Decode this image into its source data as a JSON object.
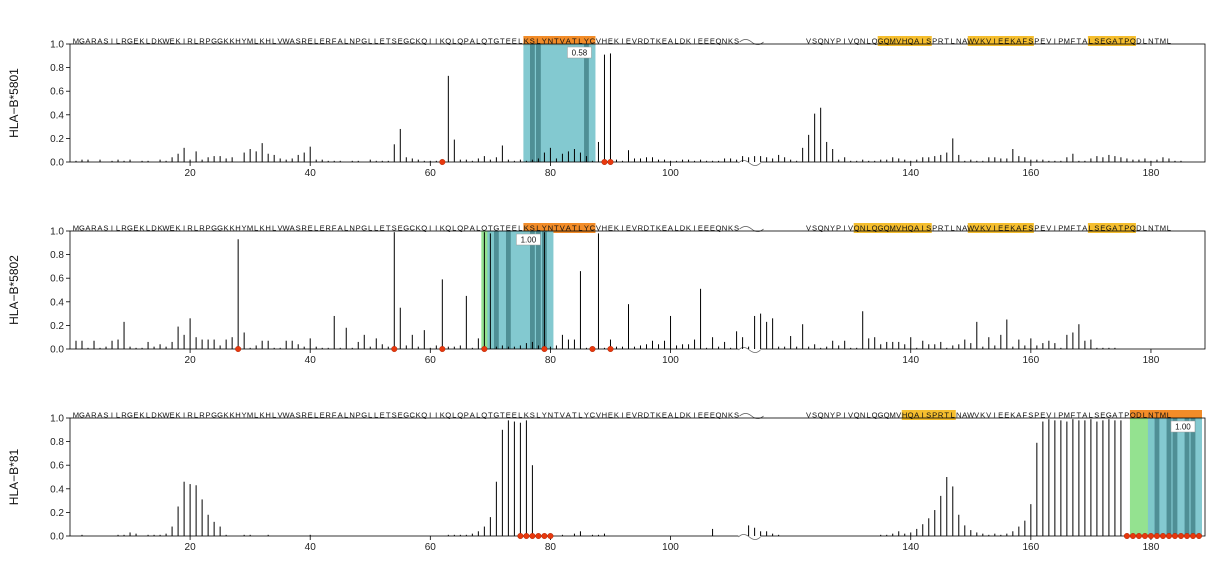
{
  "chart_data": {
    "type": "bar",
    "description": "Epitope prediction stick plots for three HLA alleles along an antigen sequence (two segments separated by a break)",
    "segment1_sequence": "MGARASILRGEKLDKWEKIRLRPGGKKHYMLKHLVWASRELERFALNPGLLETSEGCKQIIKQLQPALQTGTEELKSLYNTVATLYCVHEKIEVRDTKEALDKIEEEQNKS",
    "segment2_sequence": "VSQNYPIVQNLQGQMVHQAISPRTLNAWVKVIEEKAFSPEVIPMFTALSEGATPQDLNTML",
    "break_at": 111,
    "xlim": [
      0,
      189
    ],
    "ylim": [
      0,
      1.0
    ],
    "xticks": [
      20,
      40,
      60,
      80,
      100,
      140,
      160,
      180
    ],
    "yticks": [
      0.0,
      0.2,
      0.4,
      0.6,
      0.8,
      1.0
    ],
    "colors": {
      "orange": "#F28C28",
      "yellow": "#F5BE2E",
      "teal": "#7CC6CE",
      "teal_dark": "#4F8F95",
      "green": "#8EE08A",
      "dot": "#E8380D",
      "stick": "#000000",
      "axis": "#000000"
    },
    "panels": [
      {
        "allele": "HLA−B*5801",
        "score_label": "0.58",
        "highlights": [
          {
            "start": 76,
            "end": 87,
            "color": "orange"
          },
          {
            "start": 135,
            "end": 143,
            "color": "yellow"
          },
          {
            "start": 150,
            "end": 160,
            "color": "yellow"
          },
          {
            "start": 170,
            "end": 177,
            "color": "yellow"
          }
        ],
        "boxes": [
          {
            "start": 76,
            "end": 87,
            "color": "teal"
          }
        ],
        "box_dark": [
          77,
          78,
          86
        ],
        "dots": [
          62,
          89,
          90
        ],
        "values": [
          0.01,
          0.02,
          0.02,
          0,
          0.02,
          0,
          0.01,
          0.02,
          0.01,
          0.02,
          0,
          0.01,
          0.01,
          0,
          0.02,
          0.01,
          0.04,
          0.07,
          0.12,
          0.02,
          0.09,
          0.02,
          0.04,
          0.05,
          0.05,
          0.03,
          0.04,
          0,
          0.08,
          0.11,
          0.09,
          0.16,
          0.07,
          0.06,
          0.03,
          0.02,
          0.03,
          0.06,
          0.08,
          0.13,
          0.02,
          0.02,
          0.01,
          0.01,
          0.01,
          0,
          0.01,
          0.01,
          0,
          0.02,
          0.01,
          0.01,
          0.01,
          0.15,
          0.28,
          0.04,
          0.03,
          0.02,
          0.01,
          0.01,
          0.01,
          0.01,
          0.73,
          0.19,
          0.02,
          0.02,
          0.01,
          0.03,
          0.05,
          0.02,
          0.04,
          0.14,
          0.02,
          0.01,
          0.02,
          0.01,
          0.02,
          0.03,
          0.08,
          0.12,
          0.03,
          0.07,
          0.09,
          0.11,
          0.08,
          0.05,
          0.01,
          0.17,
          0.91,
          0.92,
          0.02,
          0.01,
          0.1,
          0.03,
          0.03,
          0.04,
          0.04,
          0.02,
          0.02,
          0.01,
          0.01,
          0.02,
          0.02,
          0.01,
          0.02,
          0.01,
          0.01,
          0.01,
          0.03,
          0.03,
          0.02,
          0.05,
          0.04,
          0.05,
          0.05,
          0.04,
          0.03,
          0.06,
          0.04,
          0.02,
          0.01,
          0.12,
          0.23,
          0.41,
          0.46,
          0.17,
          0.11,
          0.02,
          0.04,
          0.01,
          0.01,
          0.02,
          0.01,
          0.01,
          0.02,
          0.02,
          0.04,
          0.03,
          0.02,
          0.01,
          0.02,
          0.04,
          0.04,
          0.05,
          0.06,
          0.08,
          0.2,
          0.06,
          0.01,
          0.02,
          0.01,
          0.01,
          0.04,
          0.04,
          0.03,
          0.03,
          0.11,
          0.05,
          0.04,
          0.02,
          0.02,
          0.02,
          0.01,
          0.01,
          0.01,
          0.04,
          0.07,
          0.01,
          0.01,
          0.03,
          0.05,
          0.04,
          0.06,
          0.05,
          0.04,
          0.03,
          0.02,
          0.02,
          0.03,
          0.01,
          0.02,
          0.04,
          0.03,
          0.01,
          0.01
        ]
      },
      {
        "allele": "HLA−B*5802",
        "score_label": "1.00",
        "highlights": [
          {
            "start": 76,
            "end": 87,
            "color": "orange"
          },
          {
            "start": 131,
            "end": 143,
            "color": "yellow"
          },
          {
            "start": 150,
            "end": 160,
            "color": "yellow"
          },
          {
            "start": 170,
            "end": 177,
            "color": "yellow"
          }
        ],
        "boxes": [
          {
            "start": 69,
            "end": 70,
            "color": "green"
          },
          {
            "start": 70,
            "end": 80,
            "color": "teal"
          }
        ],
        "box_dark": [
          71,
          73,
          77,
          78,
          79
        ],
        "dots": [
          28,
          54,
          62,
          69,
          79,
          87,
          90
        ],
        "values": [
          0.07,
          0.07,
          0.01,
          0.07,
          0.01,
          0.02,
          0.07,
          0.08,
          0.23,
          0.02,
          0.01,
          0.01,
          0.06,
          0.02,
          0.04,
          0.02,
          0.06,
          0.19,
          0.12,
          0.26,
          0.1,
          0.08,
          0.08,
          0.08,
          0.03,
          0.08,
          0.1,
          0.93,
          0.14,
          0.01,
          0.03,
          0.07,
          0.07,
          0.01,
          0.01,
          0.07,
          0.07,
          0.04,
          0.02,
          0.09,
          0.02,
          0.01,
          0.01,
          0.28,
          0.01,
          0.18,
          0.01,
          0.06,
          0.12,
          0.02,
          0.09,
          0.04,
          0.02,
          0.99,
          0.35,
          0.03,
          0.12,
          0.02,
          0.16,
          0.01,
          0.03,
          0.59,
          0.02,
          0.02,
          0.03,
          0.45,
          0.01,
          0.09,
          0.99,
          0.98,
          0.02,
          0.03,
          0.02,
          0.02,
          0.03,
          0.05,
          0.06,
          0.03,
          0.99,
          0.02,
          0.03,
          0.12,
          0.08,
          0.08,
          0.66,
          0.01,
          0.02,
          0.98,
          0.01,
          0.08,
          0.02,
          0.02,
          0.38,
          0.02,
          0.03,
          0.04,
          0.07,
          0.04,
          0.07,
          0.28,
          0.03,
          0.04,
          0.04,
          0.08,
          0.51,
          0.01,
          0.1,
          0.02,
          0.06,
          0.01,
          0.15,
          0.1,
          0.02,
          0.28,
          0.3,
          0.23,
          0.26,
          0.02,
          0.02,
          0.11,
          0.02,
          0.21,
          0.02,
          0.04,
          0.01,
          0.02,
          0.07,
          0.03,
          0.07,
          0.01,
          0.01,
          0.32,
          0.09,
          0.1,
          0.04,
          0.06,
          0.06,
          0.06,
          0.04,
          0.1,
          0.01,
          0.07,
          0.04,
          0.04,
          0.06,
          0.01,
          0.03,
          0.04,
          0.08,
          0.05,
          0.23,
          0.02,
          0.1,
          0.03,
          0.12,
          0.25,
          0.02,
          0.08,
          0.03,
          0.09,
          0.03,
          0.05,
          0.07,
          0.05,
          0.01,
          0.12,
          0.14,
          0.21,
          0.07,
          0.08,
          0.01,
          0.01,
          0.01,
          0.01
        ]
      },
      {
        "allele": "HLA−B*81",
        "score_label": "1.00",
        "highlights": [
          {
            "start": 139,
            "end": 147,
            "color": "yellow"
          },
          {
            "start": 177,
            "end": 188,
            "color": "orange"
          }
        ],
        "boxes": [
          {
            "start": 177,
            "end": 180,
            "color": "green"
          },
          {
            "start": 180,
            "end": 188,
            "color": "teal"
          }
        ],
        "box_dark": [
          181,
          183,
          184,
          186,
          187
        ],
        "dots": [
          75,
          76,
          77,
          78,
          79,
          80,
          176,
          177,
          178,
          179,
          180,
          181,
          182,
          183,
          184,
          185,
          186,
          187,
          188
        ],
        "values": [
          0,
          0.01,
          0,
          0,
          0,
          0,
          0,
          0.01,
          0.01,
          0.03,
          0.02,
          0,
          0.01,
          0.01,
          0.01,
          0.02,
          0.08,
          0.25,
          0.46,
          0.44,
          0.43,
          0.31,
          0.18,
          0.12,
          0.08,
          0.01,
          0,
          0,
          0.01,
          0.01,
          0,
          0,
          0.01,
          0,
          0,
          0,
          0,
          0,
          0,
          0.01,
          0,
          0,
          0,
          0,
          0,
          0,
          0,
          0,
          0,
          0,
          0,
          0,
          0,
          0,
          0,
          0,
          0,
          0,
          0,
          0,
          0,
          0,
          0.01,
          0.01,
          0.01,
          0.01,
          0.02,
          0.04,
          0.08,
          0.16,
          0.46,
          0.9,
          0.98,
          0.97,
          0.96,
          0.98,
          0.6,
          0.01,
          0,
          0,
          0,
          0.01,
          0,
          0.02,
          0.04,
          0,
          0.01,
          0.01,
          0.02,
          0,
          0,
          0,
          0,
          0,
          0,
          0,
          0,
          0,
          0,
          0,
          0,
          0,
          0,
          0,
          0,
          0,
          0.06,
          0,
          0,
          0,
          0,
          0,
          0.09,
          0.07,
          0.04,
          0.04,
          0.02,
          0.01,
          0,
          0,
          0,
          0,
          0,
          0,
          0,
          0,
          0,
          0,
          0,
          0,
          0,
          0,
          0,
          0,
          0.01,
          0.01,
          0.02,
          0.04,
          0.02,
          0.03,
          0.06,
          0.1,
          0.15,
          0.22,
          0.34,
          0.5,
          0.42,
          0.18,
          0.09,
          0.05,
          0.03,
          0.02,
          0.01,
          0.02,
          0.01,
          0.02,
          0.04,
          0.08,
          0.13,
          0.27,
          0.79,
          0.97,
          0.99,
          0.98,
          0.98,
          0.97,
          0.99,
          0.98,
          0.98,
          0.99,
          0.97,
          0.98,
          0.99,
          0.98,
          0.98
        ]
      }
    ]
  }
}
